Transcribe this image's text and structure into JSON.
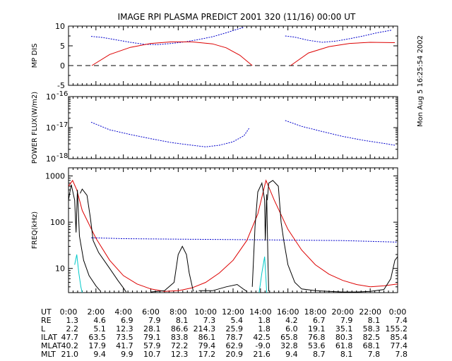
{
  "title": "IMAGE  RPI PLASMA PREDICT 2001 320 (11/16) 00:00 UT",
  "side_date": "Mon Aug  5 16:25:54 2002",
  "colors": {
    "blue": "#0000cc",
    "red": "#dd0000",
    "cyan": "#00c8c8",
    "black": "#000000"
  },
  "chart_data": [
    {
      "type": "line",
      "ylabel": "MP DIS",
      "ylim": [
        -5,
        10
      ],
      "yticks": [
        "-5",
        "0",
        "5",
        "10"
      ],
      "zero_line": "dashed",
      "series": [
        {
          "color": "blue",
          "segments": [
            [
              [
                1.65,
                7.4
              ],
              [
                2.5,
                7.1
              ],
              [
                3.5,
                6.5
              ],
              [
                4.5,
                5.9
              ],
              [
                5.5,
                5.4
              ],
              [
                6.5,
                5.3
              ],
              [
                7.5,
                5.6
              ],
              [
                8.5,
                6.0
              ],
              [
                9.5,
                6.6
              ],
              [
                10.5,
                7.3
              ],
              [
                11.5,
                8.3
              ],
              [
                12.3,
                9.2
              ],
              [
                12.8,
                9.7
              ]
            ],
            [
              [
                15.8,
                7.5
              ],
              [
                16.5,
                7.2
              ],
              [
                17.5,
                6.4
              ],
              [
                18.5,
                5.9
              ],
              [
                19.5,
                6.2
              ],
              [
                20.5,
                6.8
              ],
              [
                21.5,
                7.5
              ],
              [
                22.5,
                8.3
              ],
              [
                23.6,
                9.0
              ]
            ]
          ]
        },
        {
          "color": "red",
          "segments": [
            [
              [
                1.7,
                0
              ],
              [
                3,
                2.8
              ],
              [
                4.5,
                4.6
              ],
              [
                6,
                5.6
              ],
              [
                7.5,
                6.0
              ],
              [
                9,
                6.0
              ],
              [
                10.5,
                5.5
              ],
              [
                11.5,
                4.5
              ],
              [
                12.5,
                2.6
              ],
              [
                13.4,
                0
              ]
            ],
            [
              [
                16.2,
                0
              ],
              [
                17.5,
                3.2
              ],
              [
                19,
                4.8
              ],
              [
                20.5,
                5.6
              ],
              [
                22,
                5.9
              ],
              [
                23.8,
                5.8
              ]
            ]
          ]
        }
      ]
    },
    {
      "type": "line",
      "ylabel": "POWER FLUX(W/m2)",
      "yscale": "log",
      "ylim": [
        1e-18,
        1e-16
      ],
      "yticks": [
        {
          "base": "10",
          "exp": "-16"
        },
        {
          "base": "10",
          "exp": "-17"
        },
        {
          "base": "10",
          "exp": "-18"
        }
      ],
      "series": [
        {
          "color": "blue",
          "segments": [
            [
              [
                1.65,
                1.5e-17
              ],
              [
                3,
                8.5e-18
              ],
              [
                4.5,
                6e-18
              ],
              [
                6,
                4.4e-18
              ],
              [
                7.5,
                3.3e-18
              ],
              [
                9,
                2.7e-18
              ],
              [
                10,
                2.4e-18
              ],
              [
                11,
                2.7e-18
              ],
              [
                12,
                3.5e-18
              ],
              [
                12.8,
                5.5e-18
              ],
              [
                13.2,
                1e-17
              ]
            ],
            [
              [
                15.8,
                1.7e-17
              ],
              [
                17,
                1.1e-17
              ],
              [
                18.5,
                7.5e-18
              ],
              [
                20,
                5.2e-18
              ],
              [
                21.5,
                3.9e-18
              ],
              [
                23,
                3.1e-18
              ],
              [
                23.8,
                2.7e-18
              ]
            ]
          ]
        }
      ]
    },
    {
      "type": "line",
      "ylabel": "FREQ(kHz)",
      "yscale": "log",
      "ylim": [
        3,
        1500
      ],
      "yticks": [
        "10",
        "100",
        "1000"
      ],
      "series": [
        {
          "color": "blue",
          "segments": [
            [
              [
                1.65,
                46
              ],
              [
                4,
                44
              ],
              [
                8,
                43
              ],
              [
                12,
                42
              ],
              [
                16,
                41
              ],
              [
                20,
                40
              ],
              [
                24,
                37
              ]
            ]
          ]
        },
        {
          "color": "red",
          "segments": [
            [
              [
                0,
                600
              ],
              [
                0.3,
                800
              ],
              [
                0.6,
                500
              ],
              [
                1,
                180
              ],
              [
                2,
                45
              ],
              [
                3,
                15
              ],
              [
                4,
                7
              ],
              [
                5,
                4.6
              ],
              [
                6,
                3.6
              ],
              [
                7,
                3.2
              ],
              [
                8,
                3.3
              ],
              [
                9,
                3.8
              ],
              [
                10,
                5
              ],
              [
                11,
                8
              ],
              [
                12,
                15
              ],
              [
                13,
                40
              ],
              [
                13.8,
                150
              ],
              [
                14.4,
                800
              ],
              [
                15,
                300
              ],
              [
                16,
                70
              ],
              [
                17,
                25
              ],
              [
                18,
                12
              ],
              [
                19,
                7.5
              ],
              [
                20,
                5.5
              ],
              [
                21,
                4.5
              ],
              [
                22,
                4
              ],
              [
                23,
                4.2
              ],
              [
                24,
                4.6
              ]
            ]
          ]
        },
        {
          "color": "black",
          "segments": [
            [
              [
                0,
                300
              ],
              [
                0.2,
                650
              ],
              [
                0.45,
                300
              ],
              [
                0.55,
                60
              ],
              [
                0.65,
                500
              ],
              [
                0.8,
                50
              ],
              [
                1.1,
                15
              ],
              [
                1.5,
                7
              ],
              [
                2,
                4.2
              ],
              [
                2.3,
                3.3
              ]
            ],
            [
              [
                0.85,
                420
              ],
              [
                1,
                520
              ],
              [
                1.35,
                380
              ],
              [
                1.6,
                120
              ],
              [
                1.8,
                40
              ],
              [
                2.2,
                22
              ],
              [
                3,
                10
              ],
              [
                3.6,
                5.5
              ],
              [
                4,
                3.8
              ],
              [
                4.2,
                3.1
              ]
            ],
            [
              [
                6,
                3.1
              ],
              [
                7,
                3.3
              ],
              [
                7.7,
                5
              ],
              [
                8,
                20
              ],
              [
                8.3,
                30
              ],
              [
                8.6,
                20
              ],
              [
                8.8,
                8
              ],
              [
                9.1,
                3.2
              ]
            ],
            [
              [
                9.5,
                3.3
              ],
              [
                10.5,
                3.3
              ],
              [
                11.5,
                4
              ],
              [
                12.3,
                4.5
              ],
              [
                12.8,
                3.5
              ],
              [
                13,
                3.2
              ]
            ],
            [
              [
                13.4,
                4
              ],
              [
                13.6,
                80
              ],
              [
                13.8,
                450
              ],
              [
                14.1,
                700
              ],
              [
                14.3,
                300
              ],
              [
                14.35,
                40
              ],
              [
                14.45,
                400
              ],
              [
                14.55,
                12
              ],
              [
                14.6,
                3.2
              ]
            ],
            [
              [
                14.5,
                300
              ],
              [
                14.6,
                700
              ],
              [
                14.9,
                800
              ],
              [
                15.3,
                600
              ],
              [
                15.5,
                100
              ],
              [
                15.7,
                40
              ],
              [
                16,
                12
              ],
              [
                16.5,
                5
              ],
              [
                17,
                3.6
              ],
              [
                18,
                3.3
              ],
              [
                19,
                3.2
              ],
              [
                20,
                3.1
              ],
              [
                21,
                3.1
              ],
              [
                22,
                3.2
              ],
              [
                23,
                3.5
              ],
              [
                23.5,
                6
              ],
              [
                23.8,
                15
              ],
              [
                24,
                18
              ]
            ]
          ]
        },
        {
          "color": "cyan",
          "segments": [
            [
              [
                0.45,
                12
              ],
              [
                0.6,
                20
              ],
              [
                0.75,
                8
              ],
              [
                0.9,
                4
              ],
              [
                1,
                3
              ]
            ],
            [
              [
                13.9,
                3
              ],
              [
                14.1,
                8
              ],
              [
                14.3,
                18
              ],
              [
                14.4,
                6
              ],
              [
                14.45,
                3
              ]
            ]
          ]
        }
      ]
    }
  ],
  "table": {
    "labels": [
      "UT",
      "RE",
      "L",
      "ILAT",
      "MLAT",
      "MLT"
    ],
    "columns": [
      [
        "0:00",
        "1.3",
        "2.2",
        "47.7",
        "40.2",
        "21.0"
      ],
      [
        "2:00",
        "4.6",
        "5.1",
        "63.5",
        "17.9",
        "9.4"
      ],
      [
        "4:00",
        "6.9",
        "12.3",
        "73.5",
        "41.7",
        "9.9"
      ],
      [
        "6:00",
        "7.9",
        "28.1",
        "79.1",
        "57.9",
        "10.7"
      ],
      [
        "8:00",
        "8.1",
        "86.6",
        "83.8",
        "72.2",
        "12.3"
      ],
      [
        "10:00",
        "7.3",
        "214.3",
        "86.1",
        "79.4",
        "17.2"
      ],
      [
        "12:00",
        "5.4",
        "25.9",
        "78.7",
        "62.9",
        "20.9"
      ],
      [
        "14:00",
        "1.8",
        "1.8",
        "42.5",
        "-9.0",
        "21.6"
      ],
      [
        "16:00",
        "4.2",
        "6.0",
        "65.8",
        "32.8",
        "9.4"
      ],
      [
        "18:00",
        "6.7",
        "19.1",
        "76.8",
        "53.6",
        "8.7"
      ],
      [
        "20:00",
        "7.9",
        "35.1",
        "80.3",
        "61.8",
        "8.1"
      ],
      [
        "22:00",
        "8.1",
        "58.3",
        "82.5",
        "68.1",
        "7.8"
      ],
      [
        "0:00",
        "7.4",
        "155.2",
        "85.4",
        "77.4",
        "7.8"
      ]
    ]
  }
}
